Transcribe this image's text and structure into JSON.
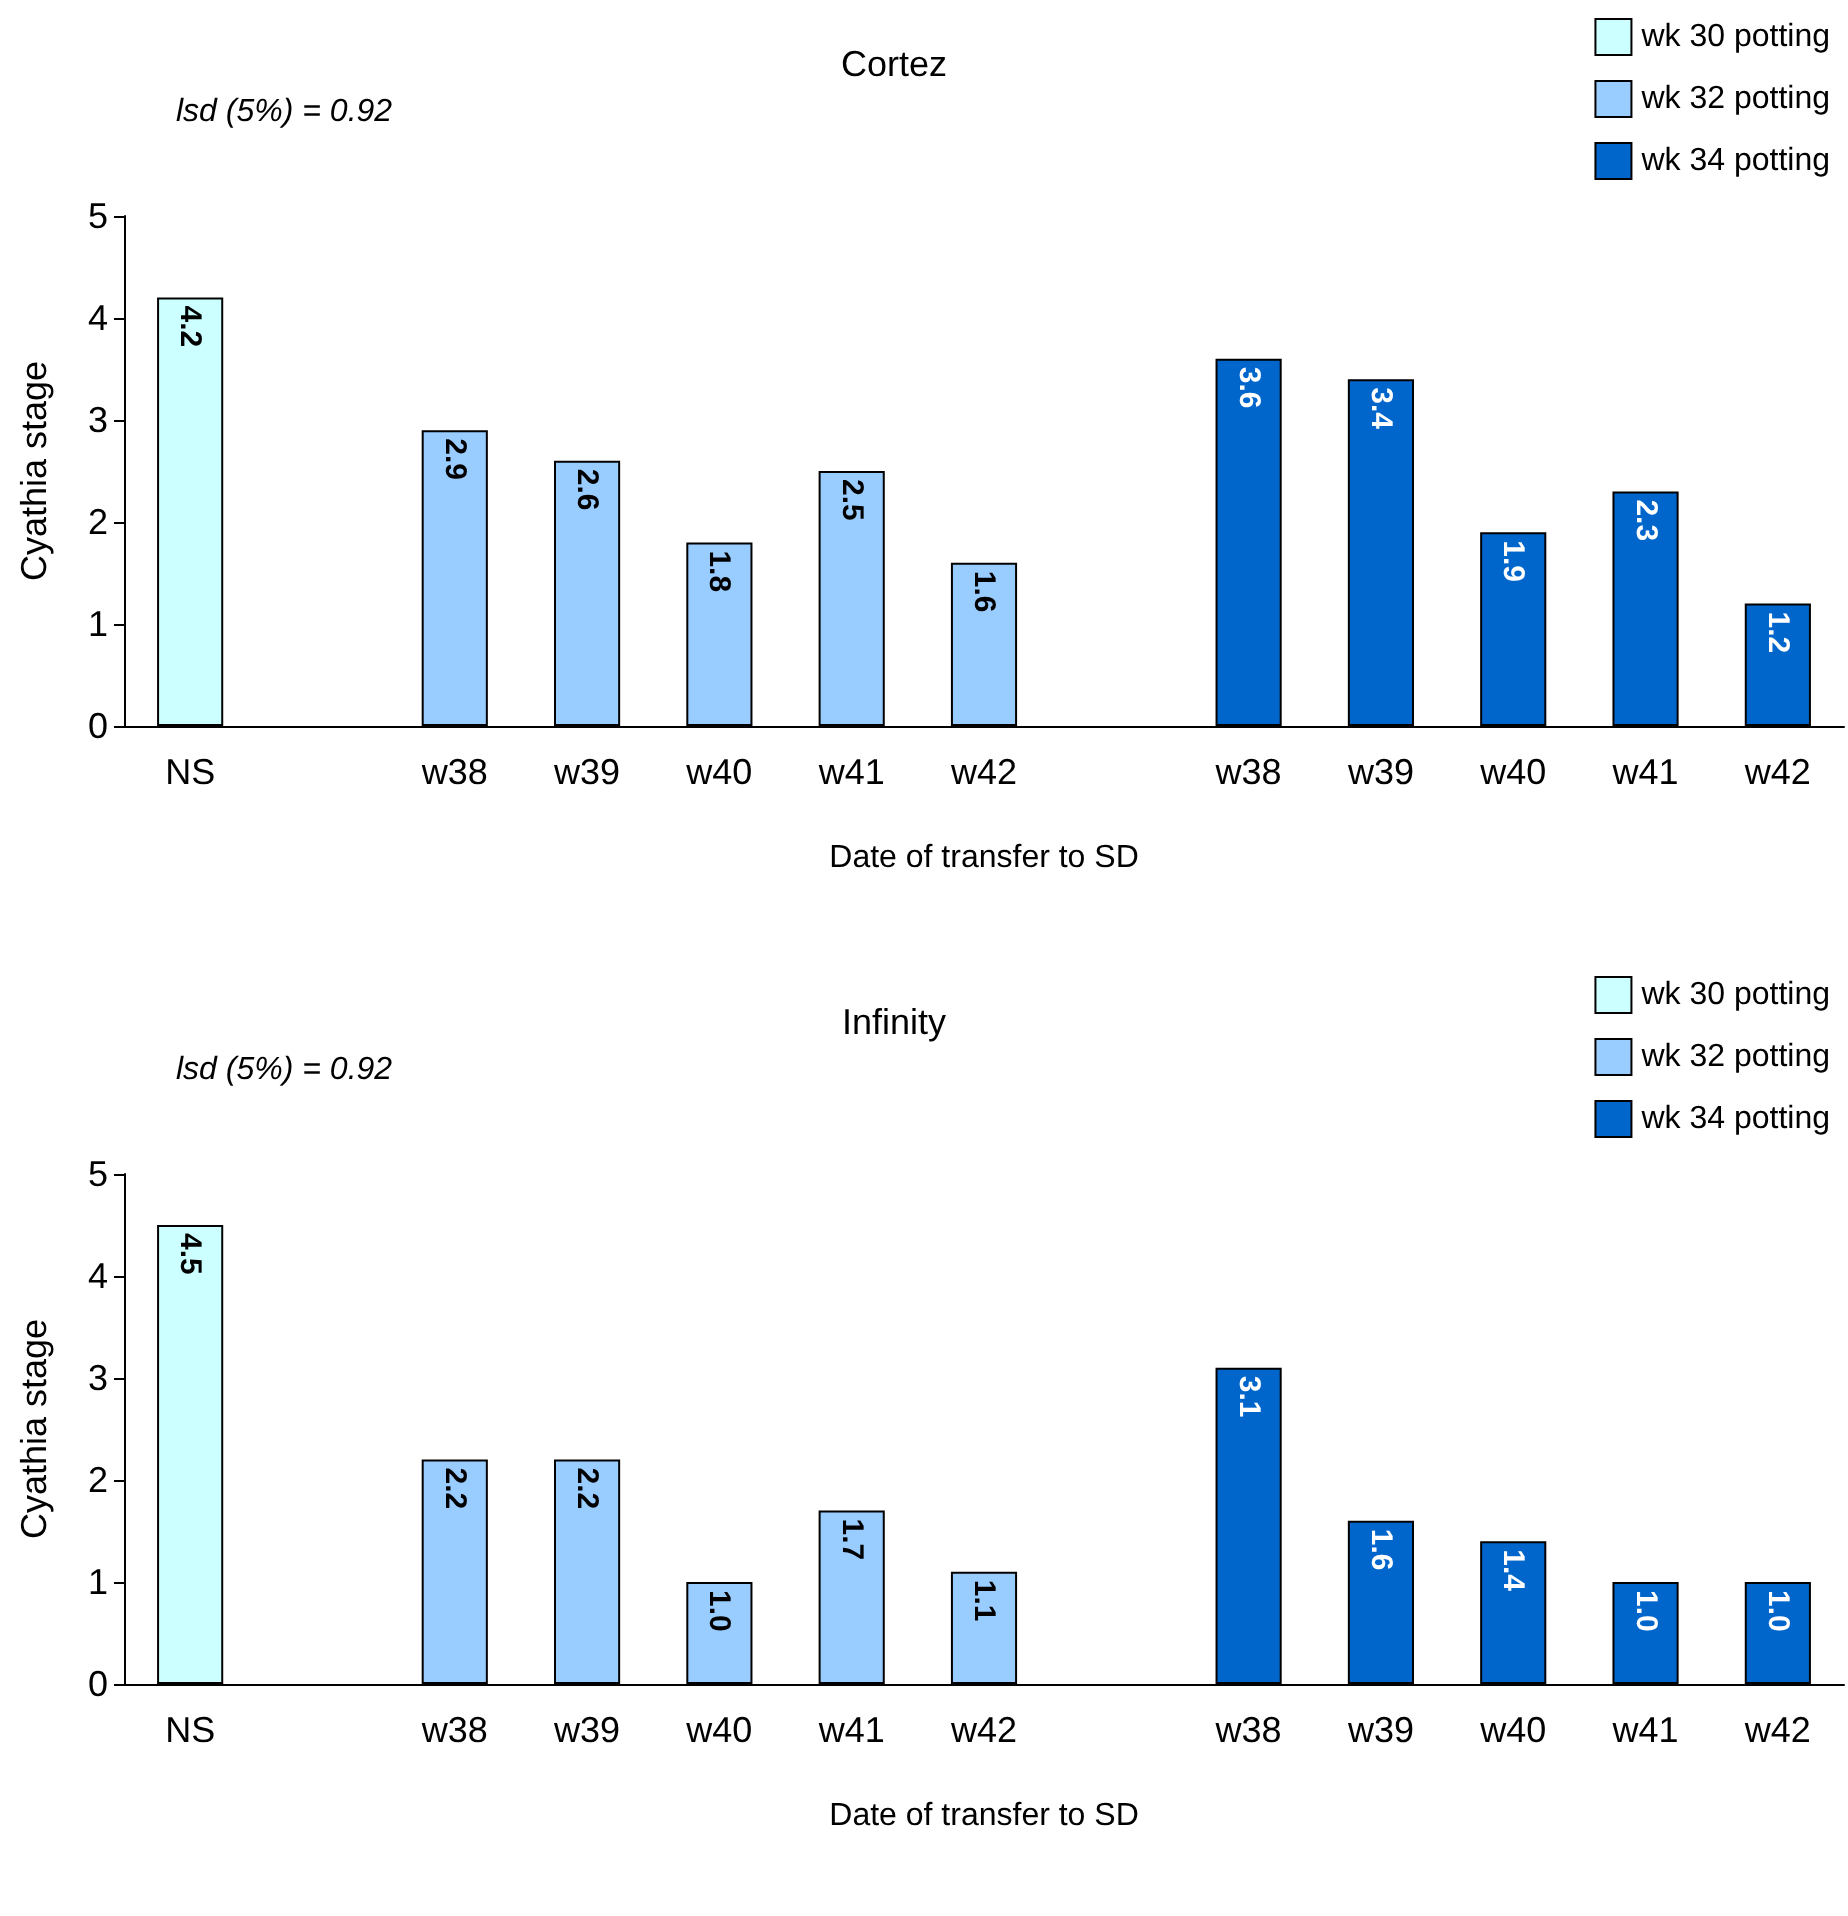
{
  "chart_data": [
    {
      "type": "bar",
      "title": "Cortez",
      "xlabel": "Date of transfer to SD",
      "ylabel": "Cyathia stage",
      "annotations": [
        "lsd (5%) = 0.92"
      ],
      "categories": [
        "NS",
        null,
        "w38",
        "w39",
        "w40",
        "w41",
        "w42",
        null,
        "w38",
        "w39",
        "w40",
        "w41",
        "w42"
      ],
      "series": [
        {
          "name": "wk 30 potting",
          "color": "#ccffff",
          "values": [
            4.2,
            null,
            null,
            null,
            null,
            null,
            null,
            null,
            null,
            null,
            null,
            null,
            null
          ],
          "value_labels": [
            "4.2",
            null,
            null,
            null,
            null,
            null,
            null,
            null,
            null,
            null,
            null,
            null,
            null
          ]
        },
        {
          "name": "wk 32 potting",
          "color": "#99ccff",
          "values": [
            null,
            null,
            2.9,
            2.6,
            1.8,
            2.5,
            1.6,
            null,
            null,
            null,
            null,
            null,
            null
          ],
          "value_labels": [
            null,
            null,
            "2.9",
            "2.6",
            "1.8",
            "2.5",
            "1.6",
            null,
            null,
            null,
            null,
            null,
            null
          ]
        },
        {
          "name": "wk 34 potting",
          "color": "#0066cc",
          "values": [
            null,
            null,
            null,
            null,
            null,
            null,
            null,
            null,
            3.6,
            3.4,
            1.9,
            2.3,
            1.2
          ],
          "value_labels": [
            null,
            null,
            null,
            null,
            null,
            null,
            null,
            null,
            "3.6",
            "3.4",
            "1.9",
            "2.3",
            "1.2"
          ]
        }
      ],
      "ylim": [
        0,
        5
      ],
      "yticks": [
        0,
        1,
        2,
        3,
        4,
        5
      ],
      "grid": false,
      "legend": "top right"
    },
    {
      "type": "bar",
      "title": "Infinity",
      "xlabel": "Date of transfer to SD",
      "ylabel": "Cyathia stage",
      "annotations": [
        "lsd (5%) = 0.92"
      ],
      "categories": [
        "NS",
        null,
        "w38",
        "w39",
        "w40",
        "w41",
        "w42",
        null,
        "w38",
        "w39",
        "w40",
        "w41",
        "w42"
      ],
      "series": [
        {
          "name": "wk 30 potting",
          "color": "#ccffff",
          "values": [
            4.5,
            null,
            null,
            null,
            null,
            null,
            null,
            null,
            null,
            null,
            null,
            null,
            null
          ],
          "value_labels": [
            "4.5",
            null,
            null,
            null,
            null,
            null,
            null,
            null,
            null,
            null,
            null,
            null,
            null
          ]
        },
        {
          "name": "wk 32 potting",
          "color": "#99ccff",
          "values": [
            null,
            null,
            2.2,
            2.2,
            1.0,
            1.7,
            1.1,
            null,
            null,
            null,
            null,
            null,
            null
          ],
          "value_labels": [
            null,
            null,
            "2.2",
            "2.2",
            "1.0",
            "1.7",
            "1.1",
            null,
            null,
            null,
            null,
            null,
            null
          ]
        },
        {
          "name": "wk 34 potting",
          "color": "#0066cc",
          "values": [
            null,
            null,
            null,
            null,
            null,
            null,
            null,
            null,
            3.1,
            1.6,
            1.4,
            1.0,
            1.0
          ],
          "value_labels": [
            null,
            null,
            null,
            null,
            null,
            null,
            null,
            null,
            "3.1",
            "1.6",
            "1.4",
            "1.0",
            "1.0"
          ]
        }
      ],
      "ylim": [
        0,
        5
      ],
      "yticks": [
        0,
        1,
        2,
        3,
        4,
        5
      ],
      "grid": false,
      "legend": "top right"
    }
  ]
}
